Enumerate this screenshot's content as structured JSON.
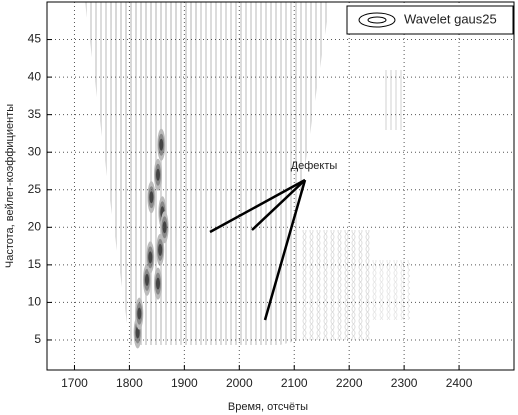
{
  "chart_data": {
    "type": "contour",
    "xlabel": "Время, отсчёты",
    "ylabel": "Частота, вейлет-коэффициенты",
    "legend": "Wavelet gaus25",
    "legend_position": "upper right",
    "annotation": "Дефекты",
    "x": [
      1815,
      1818,
      1832,
      1838,
      1852,
      1856,
      1860,
      1852,
      1858,
      1864,
      1840
    ],
    "y": [
      6,
      8.5,
      13,
      16,
      12.5,
      17,
      22,
      27,
      31,
      20,
      24
    ],
    "xlim": [
      1650,
      2500
    ],
    "ylim": [
      1,
      50
    ],
    "xticks": [
      1700,
      1800,
      1900,
      2000,
      2100,
      2200,
      2300,
      2400
    ],
    "yticks": [
      5,
      10,
      15,
      20,
      25,
      30,
      35,
      40,
      45
    ],
    "grid": true
  }
}
